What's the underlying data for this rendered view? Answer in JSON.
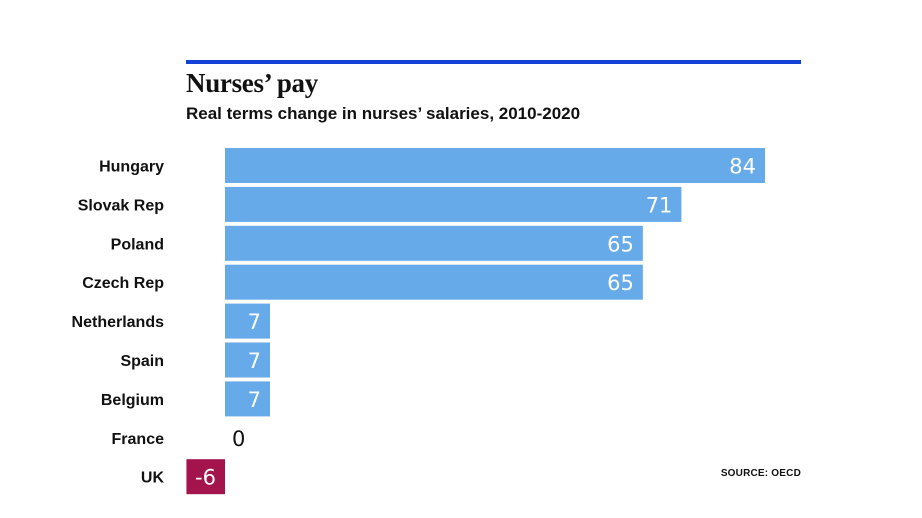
{
  "header": {
    "title": "Nurses’ pay",
    "subtitle": "Real terms change in nurses’ salaries, 2010-2020"
  },
  "footer": {
    "source": "SOURCE: OECD"
  },
  "colors": {
    "rule": "#1340d6",
    "positive_bar": "#66aaea",
    "negative_bar": "#a3144c",
    "bar_label_inside": "#ffffff",
    "bar_label_outside": "#111111"
  },
  "chart_data": {
    "type": "bar",
    "orientation": "horizontal",
    "title": "Nurses’ pay",
    "subtitle": "Real terms change in nurses’ salaries, 2010-2020",
    "categories": [
      "Hungary",
      "Slovak Rep",
      "Poland",
      "Czech Rep",
      "Netherlands",
      "Spain",
      "Belgium",
      "France",
      "UK"
    ],
    "values": [
      84,
      71,
      65,
      65,
      7,
      7,
      7,
      0,
      -6
    ],
    "xlim": [
      -6,
      84
    ],
    "grid": false,
    "legend": "none"
  }
}
